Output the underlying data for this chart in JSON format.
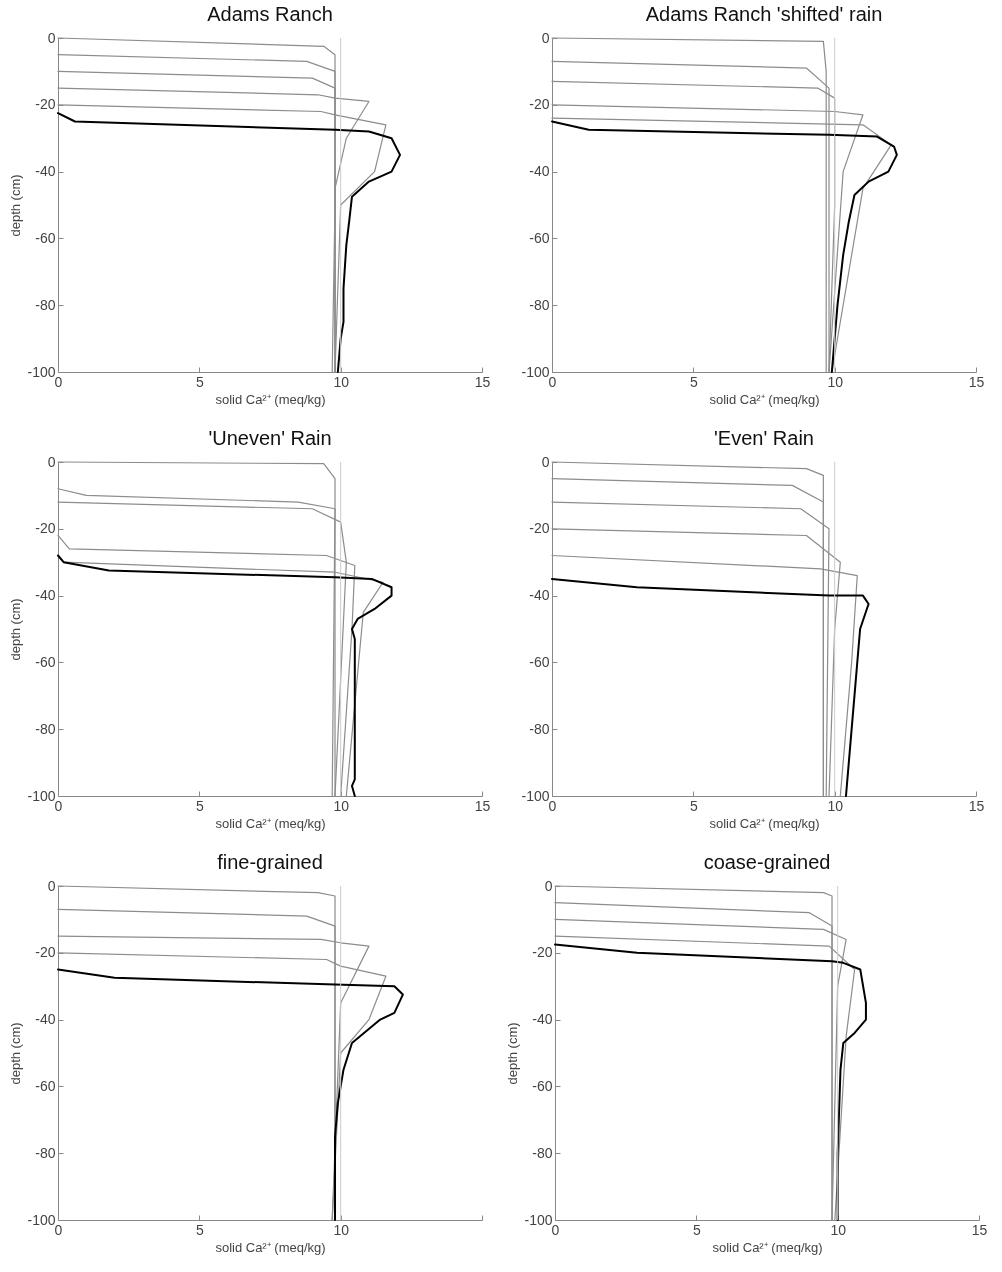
{
  "chart_data": [
    {
      "type": "line",
      "title": "Adams Ranch",
      "xlabel": "solid Ca²⁺ (meq/kg)",
      "ylabel": "depth (cm)",
      "xlim": [
        0,
        15
      ],
      "xticks": [
        0,
        5,
        10,
        15
      ],
      "ylim": [
        -100,
        0
      ],
      "yticks": [
        -100,
        -80,
        -60,
        -40,
        -20,
        0
      ],
      "ref_lines": [
        {
          "axis": "x",
          "value": 10,
          "color": "#cccccc"
        }
      ],
      "series": [
        {
          "color": "#8c8c8c",
          "x": [
            0,
            9.4,
            9.8,
            9.8
          ],
          "values": [
            0,
            -2.5,
            -5,
            -100
          ]
        },
        {
          "color": "#8c8c8c",
          "x": [
            0,
            8.8,
            9.8,
            9.8
          ],
          "values": [
            -5,
            -7,
            -10,
            -100
          ]
        },
        {
          "color": "#8c8c8c",
          "x": [
            0,
            9,
            9.8,
            9.8,
            9.7
          ],
          "values": [
            -10,
            -12,
            -15,
            -50,
            -100
          ]
        },
        {
          "color": "#8c8c8c",
          "x": [
            0,
            9.2,
            9.8,
            11,
            10.2,
            9.8,
            9.8
          ],
          "values": [
            -15,
            -17,
            -18,
            -19,
            -30,
            -45,
            -100
          ]
        },
        {
          "color": "#8c8c8c",
          "x": [
            0,
            9.3,
            9.8,
            11.6,
            11.2,
            10,
            9.8
          ],
          "values": [
            -20,
            -22,
            -23,
            -26,
            -40,
            -50,
            -100
          ]
        },
        {
          "color": "#000000",
          "x": [
            0,
            0.6,
            9.8,
            11,
            11.8,
            12.1,
            11.8,
            11,
            10.4,
            10.3,
            10.2,
            10.1,
            10.1,
            10,
            9.9
          ],
          "values": [
            -22.5,
            -25,
            -27.5,
            -28,
            -30,
            -35,
            -40,
            -43,
            -47.5,
            -55,
            -62,
            -75,
            -85,
            -90,
            -100
          ]
        }
      ]
    },
    {
      "type": "line",
      "title": "Adams Ranch 'shifted' rain",
      "xlabel": "solid Ca²⁺ (meq/kg)",
      "xlim": [
        0,
        15
      ],
      "xticks": [
        0,
        5,
        10,
        15
      ],
      "ylim": [
        -100,
        0
      ],
      "yticks": [
        -100,
        -80,
        -60,
        -40,
        -20,
        0
      ],
      "ref_lines": [
        {
          "axis": "x",
          "value": 10,
          "color": "#cccccc"
        }
      ],
      "series": [
        {
          "color": "#8c8c8c",
          "x": [
            0,
            9.6,
            9.7,
            9.7
          ],
          "values": [
            0,
            -1,
            -10,
            -100
          ]
        },
        {
          "color": "#8c8c8c",
          "x": [
            0,
            9,
            9.8,
            9.8
          ],
          "values": [
            -7,
            -9,
            -15,
            -100
          ]
        },
        {
          "color": "#8c8c8c",
          "x": [
            0,
            9.4,
            10,
            10,
            9.8
          ],
          "values": [
            -13,
            -15,
            -18,
            -50,
            -100
          ]
        },
        {
          "color": "#8c8c8c",
          "x": [
            0,
            10,
            11,
            10.3,
            9.8
          ],
          "values": [
            -20,
            -22,
            -23,
            -40,
            -100
          ]
        },
        {
          "color": "#8c8c8c",
          "x": [
            0,
            11,
            12,
            11,
            9.9
          ],
          "values": [
            -24,
            -26,
            -32,
            -45,
            -100
          ]
        },
        {
          "color": "#000000",
          "x": [
            0,
            1.3,
            9.8,
            11.5,
            12.1,
            12.2,
            11.9,
            11.2,
            10.7,
            10.5,
            10.3,
            10.1,
            10,
            9.9
          ],
          "values": [
            -25,
            -27.5,
            -29,
            -29.5,
            -32.5,
            -35,
            -40,
            -43,
            -47,
            -55,
            -65,
            -80,
            -90,
            -100
          ]
        }
      ]
    },
    {
      "type": "line",
      "title": "'Uneven' Rain",
      "xlabel": "solid Ca²⁺ (meq/kg)",
      "ylabel": "depth (cm)",
      "xlim": [
        0,
        15
      ],
      "xticks": [
        0,
        5,
        10,
        15
      ],
      "ylim": [
        -100,
        0
      ],
      "yticks": [
        -100,
        -80,
        -60,
        -40,
        -20,
        0
      ],
      "ref_lines": [
        {
          "axis": "x",
          "value": 10,
          "color": "#cccccc"
        }
      ],
      "series": [
        {
          "color": "#8c8c8c",
          "x": [
            0,
            9.4,
            9.8,
            9.8
          ],
          "values": [
            0,
            -0.5,
            -5,
            -100
          ]
        },
        {
          "color": "#8c8c8c",
          "x": [
            0,
            1,
            8.5,
            9.8,
            9.7
          ],
          "values": [
            -8,
            -10,
            -12,
            -14,
            -100
          ]
        },
        {
          "color": "#8c8c8c",
          "x": [
            0,
            9,
            10,
            10.2,
            9.8
          ],
          "values": [
            -12,
            -14,
            -18,
            -30,
            -100
          ]
        },
        {
          "color": "#8c8c8c",
          "x": [
            0,
            0.4,
            9.5,
            10.5,
            10.4,
            10
          ],
          "values": [
            -22,
            -26,
            -28,
            -31,
            -50,
            -100
          ]
        },
        {
          "color": "#8c8c8c",
          "x": [
            0.2,
            9.8,
            11.5,
            10.8,
            10.2
          ],
          "values": [
            -30,
            -33,
            -36,
            -45,
            -100
          ]
        },
        {
          "color": "#000000",
          "x": [
            0,
            0.2,
            1.8,
            9.8,
            11.1,
            11.8,
            11.8,
            11.2,
            10.6,
            10.4,
            10.5,
            10.5,
            10.5,
            10.5,
            10.4,
            10.5
          ],
          "values": [
            -28,
            -30,
            -32.5,
            -34.5,
            -35,
            -37.5,
            -40,
            -44,
            -47,
            -50,
            -53,
            -60,
            -80,
            -95,
            -97,
            -100
          ]
        }
      ]
    },
    {
      "type": "line",
      "title": "'Even' Rain",
      "xlabel": "solid Ca²⁺ (meq/kg)",
      "xlim": [
        0,
        15
      ],
      "xticks": [
        0,
        5,
        10,
        15
      ],
      "ylim": [
        -100,
        0
      ],
      "yticks": [
        -100,
        -80,
        -60,
        -40,
        -20,
        0
      ],
      "ref_lines": [
        {
          "axis": "x",
          "value": 10,
          "color": "#cccccc"
        }
      ],
      "series": [
        {
          "color": "#8c8c8c",
          "x": [
            0,
            9,
            9.6,
            9.6
          ],
          "values": [
            0,
            -2,
            -4,
            -100
          ]
        },
        {
          "color": "#8c8c8c",
          "x": [
            0,
            8.5,
            9.6,
            9.6
          ],
          "values": [
            -5,
            -7,
            -12,
            -100
          ]
        },
        {
          "color": "#8c8c8c",
          "x": [
            0,
            8.8,
            9.8,
            9.7
          ],
          "values": [
            -12,
            -14,
            -20,
            -100
          ]
        },
        {
          "color": "#8c8c8c",
          "x": [
            0,
            9,
            10.2,
            10,
            9.8
          ],
          "values": [
            -20,
            -22,
            -30,
            -50,
            -100
          ]
        },
        {
          "color": "#8c8c8c",
          "x": [
            0,
            9.5,
            10.8,
            10.6,
            10.2
          ],
          "values": [
            -28,
            -32,
            -34,
            -60,
            -100
          ]
        },
        {
          "color": "#000000",
          "x": [
            0,
            3,
            9.8,
            11,
            11.2,
            11.1,
            10.9,
            10.8,
            10.7,
            10.6,
            10.5,
            10.4
          ],
          "values": [
            -35,
            -37.5,
            -40,
            -40,
            -42.5,
            -45,
            -50,
            -60,
            -70,
            -80,
            -90,
            -100
          ]
        }
      ]
    },
    {
      "type": "line",
      "title": "fine-grained",
      "xlabel": "solid Ca²⁺ (meq/kg)",
      "ylabel": "depth (cm)",
      "xlim": [
        0,
        15
      ],
      "xticks": [
        0,
        5,
        10,
        {
          "value": 15,
          "label": null
        }
      ],
      "ylim": [
        -100,
        0
      ],
      "yticks": [
        -100,
        -80,
        -60,
        -40,
        -20,
        0
      ],
      "ref_lines": [
        {
          "axis": "x",
          "value": 10,
          "color": "#cccccc"
        }
      ],
      "series": [
        {
          "color": "#8c8c8c",
          "x": [
            0,
            9.2,
            9.8,
            9.8
          ],
          "values": [
            0,
            -2,
            -3,
            -100
          ]
        },
        {
          "color": "#8c8c8c",
          "x": [
            0,
            8.8,
            9.8,
            9.8
          ],
          "values": [
            -7,
            -9,
            -12,
            -100
          ]
        },
        {
          "color": "#8c8c8c",
          "x": [
            0,
            9.3,
            10,
            11,
            10,
            9.7
          ],
          "values": [
            -15,
            -16,
            -17,
            -18,
            -35,
            -100
          ]
        },
        {
          "color": "#8c8c8c",
          "x": [
            0,
            9.5,
            10,
            11.6,
            11,
            10,
            9.7
          ],
          "values": [
            -20,
            -22,
            -24,
            -27,
            -40,
            -50,
            -100
          ]
        },
        {
          "color": "#000000",
          "x": [
            0,
            2,
            9.8,
            11.9,
            12.2,
            11.9,
            11.4,
            10.4,
            10.1,
            9.9,
            9.8,
            9.8
          ],
          "values": [
            -25,
            -27.5,
            -29.5,
            -30,
            -32.5,
            -38,
            -40,
            -47,
            -55,
            -65,
            -75,
            -100
          ]
        }
      ]
    },
    {
      "type": "line",
      "title": "coase-grained",
      "xlabel": "solid Ca²⁺ (meq/kg)",
      "ylabel": "depth (cm)",
      "xlim": [
        0,
        15
      ],
      "xticks": [
        0,
        5,
        10,
        15
      ],
      "ylim": [
        -100,
        0
      ],
      "yticks": [
        -100,
        -80,
        -60,
        -40,
        -20,
        0
      ],
      "ref_lines": [
        {
          "axis": "x",
          "value": 10,
          "color": "#cccccc"
        }
      ],
      "series": [
        {
          "color": "#8c8c8c",
          "x": [
            0,
            9.5,
            9.8,
            9.8
          ],
          "values": [
            0,
            -2,
            -3,
            -100
          ]
        },
        {
          "color": "#8c8c8c",
          "x": [
            0,
            9,
            9.8,
            9.8
          ],
          "values": [
            -5,
            -8,
            -12,
            -100
          ]
        },
        {
          "color": "#8c8c8c",
          "x": [
            0,
            9.5,
            10.3,
            10,
            9.8
          ],
          "values": [
            -10,
            -13,
            -16,
            -30,
            -100
          ]
        },
        {
          "color": "#8c8c8c",
          "x": [
            0,
            9.7,
            10.6,
            10.3,
            9.9
          ],
          "values": [
            -15,
            -18,
            -25,
            -45,
            -100
          ]
        },
        {
          "color": "#000000",
          "x": [
            0,
            2.9,
            9.8,
            10.2,
            10.8,
            11,
            11,
            10.6,
            10.2,
            10.1,
            10,
            10
          ],
          "values": [
            -17.5,
            -20,
            -22.5,
            -23,
            -25,
            -35,
            -40,
            -44,
            -47,
            -55,
            -80,
            -100
          ]
        }
      ]
    }
  ]
}
